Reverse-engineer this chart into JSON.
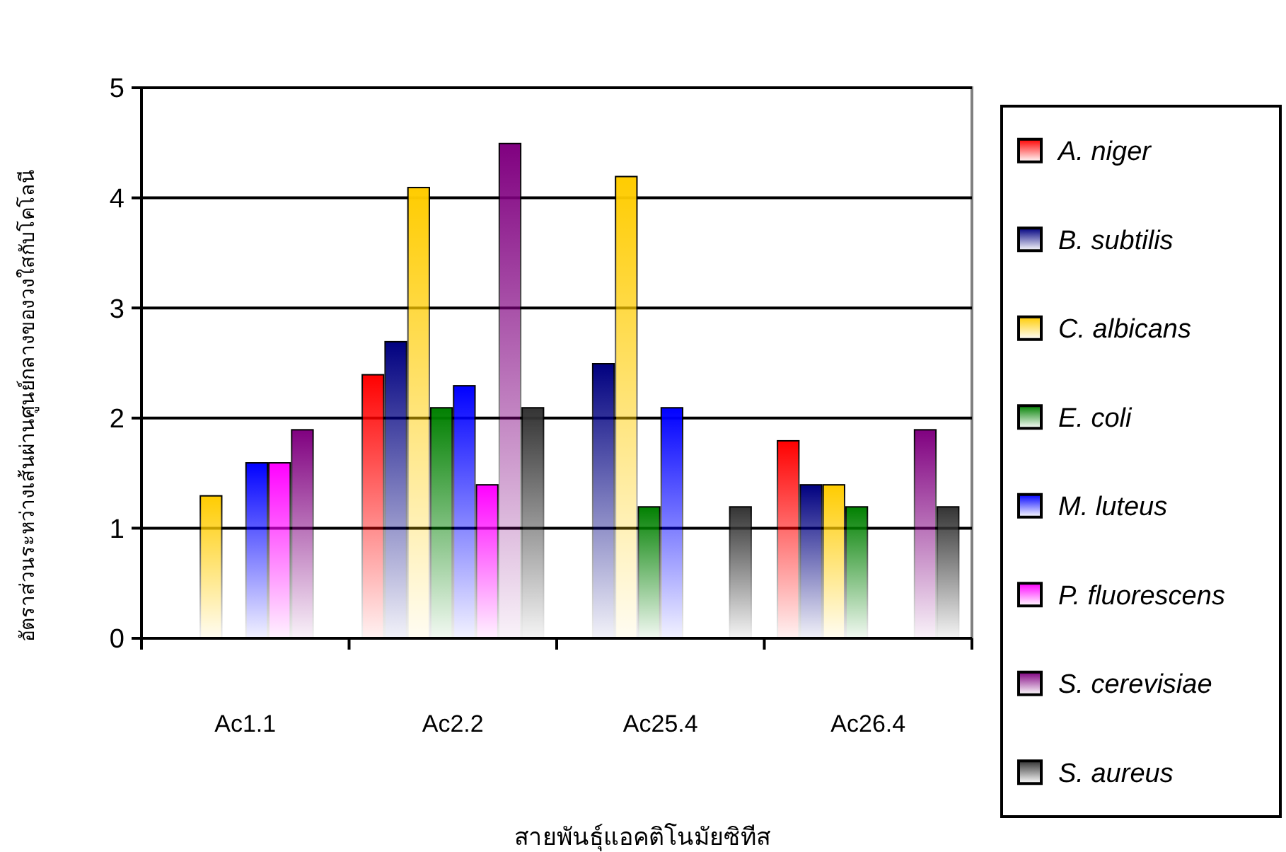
{
  "chart_data": {
    "type": "bar",
    "xlabel": "สายพันธุ์แอคติโนมัยซิทีส",
    "ylabel": "อัตราส่วนระหว่างเส้นผ่านศูนย์กลางของวงใสกับโคโลนี",
    "categories": [
      "Ac1.1",
      "Ac2.2",
      "Ac25.4",
      "Ac26.4"
    ],
    "series": [
      {
        "name": "A. niger",
        "color": "#ff0000",
        "values": [
          null,
          2.4,
          null,
          1.8
        ]
      },
      {
        "name": "B. subtilis",
        "color": "#000080",
        "values": [
          null,
          2.7,
          2.5,
          1.4
        ]
      },
      {
        "name": "C. albicans",
        "color": "#ffcc00",
        "values": [
          1.3,
          4.1,
          4.2,
          1.4
        ]
      },
      {
        "name": "E. coli",
        "color": "#008000",
        "values": [
          null,
          2.1,
          1.2,
          1.2
        ]
      },
      {
        "name": "M. luteus",
        "color": "#0000ff",
        "values": [
          1.6,
          2.3,
          2.1,
          null
        ]
      },
      {
        "name": "P. fluorescens",
        "color": "#ff00ff",
        "values": [
          1.6,
          1.4,
          null,
          null
        ]
      },
      {
        "name": "S. cerevisiae",
        "color": "#800080",
        "values": [
          1.9,
          4.5,
          null,
          1.9
        ]
      },
      {
        "name": "S. aureus",
        "color": "#333333",
        "values": [
          null,
          2.1,
          1.2,
          1.2
        ]
      }
    ],
    "ylim": [
      0,
      5
    ],
    "yticks": [
      0,
      1,
      2,
      3,
      4,
      5
    ],
    "grid": "y",
    "legend": "right"
  }
}
